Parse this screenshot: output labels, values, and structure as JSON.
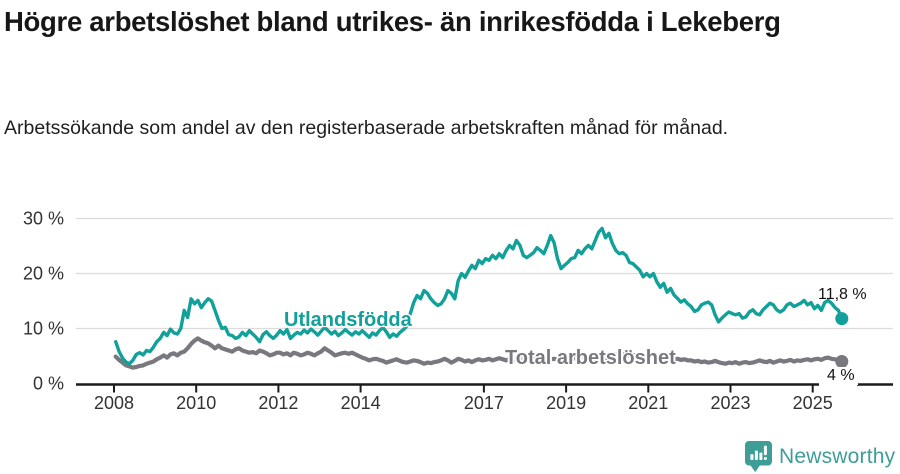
{
  "chart_data": {
    "type": "line",
    "title": "Högre arbetslöshet bland utrikes- än inrikesfödda i Lekeberg",
    "subtitle": "Arbetssökande som andel av den registerbaserade arbetskraften månad för månad.",
    "unit": "%",
    "frequency": "monthly",
    "x_start": {
      "year": 2008,
      "month": 1
    },
    "x_end": {
      "year": 2025,
      "month": 9
    },
    "ylim": [
      0,
      32
    ],
    "grid": "horizontal",
    "legend": "inline-labels",
    "yticks": [
      {
        "value": 0,
        "label": "0 %"
      },
      {
        "value": 10,
        "label": "10 %"
      },
      {
        "value": 20,
        "label": "20 %"
      },
      {
        "value": 30,
        "label": "30 %"
      }
    ],
    "xticks": [
      {
        "year": 2008,
        "label": "2008"
      },
      {
        "year": 2010,
        "label": "2010"
      },
      {
        "year": 2012,
        "label": "2012"
      },
      {
        "year": 2014,
        "label": "2014"
      },
      {
        "year": 2017,
        "label": "2017"
      },
      {
        "year": 2019,
        "label": "2019"
      },
      {
        "year": 2021,
        "label": "2021"
      },
      {
        "year": 2023,
        "label": "2023"
      },
      {
        "year": 2025,
        "label": "2025"
      }
    ],
    "series": [
      {
        "name": "Utlandsfödda",
        "inline_label": "Utlandsfödda",
        "end_label": "11,8 %",
        "end_value": 11.8,
        "color": "#12a09a",
        "stroke_width": 3.4,
        "values": [
          7.6,
          5.8,
          4.6,
          3.9,
          3.6,
          4.2,
          5.3,
          5.6,
          5.2,
          6.0,
          5.8,
          6.6,
          7.6,
          8.2,
          9.3,
          8.7,
          9.9,
          9.2,
          9.0,
          10.0,
          13.3,
          12.0,
          15.4,
          14.5,
          15.1,
          13.8,
          14.7,
          15.4,
          15.0,
          13.3,
          11.5,
          10.0,
          10.2,
          8.9,
          8.7,
          8.2,
          8.5,
          9.3,
          8.7,
          9.6,
          9.0,
          8.4,
          7.6,
          8.9,
          9.4,
          8.7,
          8.2,
          8.8,
          9.6,
          9.0,
          9.8,
          8.2,
          8.8,
          9.3,
          9.0,
          9.7,
          9.2,
          9.9,
          9.4,
          8.8,
          9.5,
          10.2,
          9.6,
          9.0,
          9.5,
          8.7,
          9.2,
          9.8,
          9.3,
          8.8,
          9.4,
          9.0,
          9.6,
          9.0,
          8.4,
          9.2,
          8.8,
          9.6,
          10.2,
          9.4,
          8.4,
          9.0,
          8.6,
          9.3,
          9.8,
          10.4,
          12.7,
          14.7,
          16.0,
          15.4,
          16.9,
          16.4,
          15.4,
          14.7,
          14.2,
          14.5,
          15.4,
          16.9,
          16.4,
          15.4,
          18.7,
          20.0,
          19.3,
          20.5,
          21.5,
          20.9,
          22.4,
          21.8,
          22.7,
          22.4,
          23.3,
          22.7,
          23.6,
          22.9,
          24.2,
          25.1,
          24.5,
          26.0,
          25.1,
          23.3,
          22.9,
          23.3,
          23.8,
          24.7,
          24.2,
          23.6,
          25.1,
          26.9,
          25.6,
          22.7,
          20.9,
          21.5,
          22.0,
          22.7,
          22.9,
          24.2,
          23.6,
          24.5,
          25.1,
          24.5,
          26.0,
          27.5,
          28.2,
          26.5,
          27.3,
          25.5,
          24.2,
          23.6,
          23.8,
          23.3,
          22.0,
          21.8,
          21.2,
          20.6,
          19.4,
          20.0,
          19.4,
          20.0,
          18.5,
          17.5,
          18.2,
          16.6,
          17.3,
          16.1,
          15.5,
          14.8,
          15.2,
          14.5,
          14.0,
          13.1,
          13.4,
          14.3,
          14.6,
          14.8,
          14.3,
          12.5,
          11.2,
          11.9,
          12.5,
          13.0,
          12.7,
          12.5,
          12.7,
          11.9,
          12.1,
          13.0,
          13.4,
          12.7,
          12.5,
          13.4,
          14.0,
          14.6,
          14.3,
          13.4,
          13.0,
          13.4,
          14.3,
          14.6,
          14.0,
          14.3,
          14.6,
          15.1,
          14.3,
          14.7,
          13.6,
          14.2,
          13.3,
          14.7,
          15.1,
          14.6,
          13.8,
          13.3,
          11.8
        ]
      },
      {
        "name": "Total arbetslöshet",
        "inline_label": "Total arbetslöshet",
        "end_label": "4 %",
        "end_value": 4.0,
        "color": "#78787f",
        "stroke_width": 4.2,
        "values": [
          4.9,
          4.3,
          3.8,
          3.3,
          3.1,
          2.9,
          3.0,
          3.2,
          3.3,
          3.6,
          3.8,
          4.0,
          4.4,
          4.7,
          5.1,
          4.7,
          5.3,
          5.5,
          5.1,
          5.6,
          5.8,
          6.4,
          7.2,
          7.8,
          8.2,
          7.8,
          7.5,
          7.3,
          6.9,
          6.4,
          6.9,
          6.4,
          6.2,
          6.0,
          5.8,
          6.2,
          6.4,
          6.0,
          5.8,
          5.6,
          5.7,
          5.5,
          6.0,
          5.8,
          5.5,
          5.1,
          5.3,
          5.6,
          5.6,
          5.3,
          5.5,
          5.1,
          5.6,
          5.4,
          5.1,
          5.3,
          5.6,
          5.4,
          5.1,
          5.5,
          5.8,
          6.4,
          6.0,
          5.6,
          5.1,
          5.3,
          5.5,
          5.6,
          5.4,
          5.6,
          5.3,
          5.0,
          4.7,
          4.5,
          4.2,
          4.4,
          4.5,
          4.3,
          4.1,
          3.8,
          4.0,
          4.2,
          4.4,
          4.1,
          3.9,
          3.8,
          4.0,
          4.2,
          4.1,
          3.9,
          3.6,
          3.8,
          3.7,
          3.9,
          4.0,
          4.2,
          4.5,
          4.2,
          3.8,
          4.1,
          4.5,
          4.3,
          4.0,
          4.2,
          3.9,
          4.2,
          4.4,
          4.2,
          4.3,
          4.5,
          4.2,
          4.4,
          4.6,
          4.4,
          4.2,
          4.5,
          4.3,
          4.4,
          4.6,
          4.5,
          4.4,
          4.6,
          4.5,
          4.3,
          4.5,
          4.4,
          4.2,
          4.4,
          4.5,
          4.3,
          4.5,
          4.6,
          4.5,
          4.4,
          4.6,
          4.5,
          4.7,
          4.5,
          4.4,
          4.6,
          4.5,
          4.7,
          4.8,
          4.6,
          4.8,
          5.0,
          5.2,
          5.4,
          5.3,
          5.1,
          5.0,
          5.2,
          5.0,
          4.9,
          4.8,
          4.9,
          4.8,
          4.9,
          4.7,
          4.8,
          4.6,
          4.5,
          4.6,
          4.4,
          4.5,
          4.3,
          4.4,
          4.2,
          4.2,
          4.0,
          4.1,
          3.9,
          4.0,
          3.8,
          3.9,
          4.1,
          3.9,
          3.7,
          3.6,
          3.8,
          3.7,
          3.9,
          3.6,
          3.8,
          3.9,
          3.7,
          3.8,
          4.0,
          4.2,
          4.0,
          3.9,
          4.1,
          3.8,
          4.0,
          4.2,
          4.0,
          4.1,
          4.3,
          4.0,
          4.2,
          4.1,
          4.3,
          4.4,
          4.2,
          4.4,
          4.5,
          4.3,
          4.6,
          4.7,
          4.5,
          4.4,
          4.2,
          4.0
        ]
      }
    ],
    "colors": {
      "grid": "#dcdcdc",
      "axis": "#1b1b1b",
      "tick_labels": "#333333",
      "value_labels": "#111111"
    }
  },
  "footer": {
    "brand": "Newsworthy",
    "logo_color": "#3f9d97"
  }
}
